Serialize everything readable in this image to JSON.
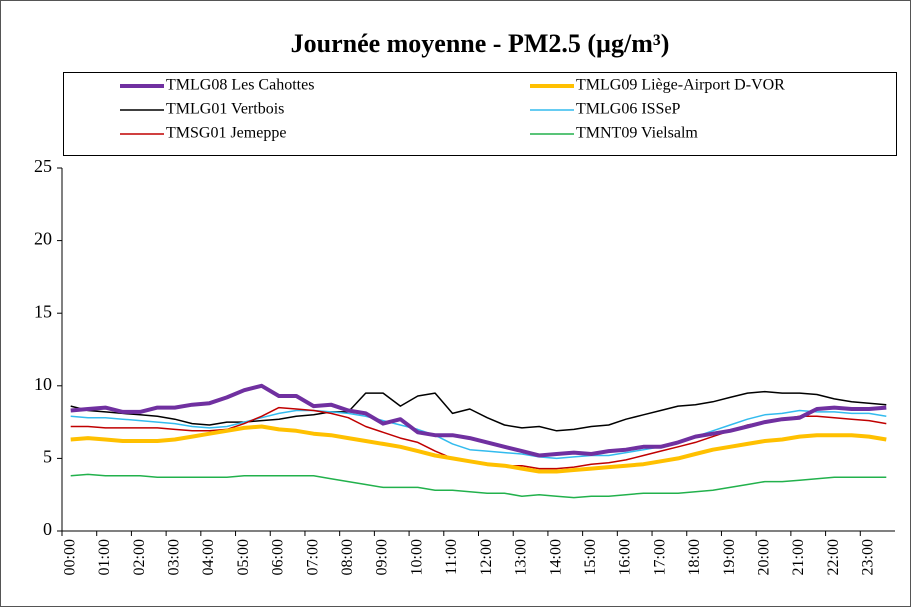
{
  "chart_data": {
    "type": "line",
    "title": "Journée moyenne - PM2.5 (µg/m³)",
    "categories": [
      "00:00",
      null,
      "01:00",
      null,
      "02:00",
      null,
      "03:00",
      null,
      "04:00",
      null,
      "05:00",
      null,
      "06:00",
      null,
      "07:00",
      null,
      "08:00",
      null,
      "09:00",
      null,
      "10:00",
      null,
      "11:00",
      null,
      "12:00",
      null,
      "13:00",
      null,
      "14:00",
      null,
      "15:00",
      null,
      "16:00",
      null,
      "17:00",
      null,
      "18:00",
      null,
      "19:00",
      null,
      "20:00",
      null,
      "21:00",
      null,
      "22:00",
      null,
      "23:00",
      null
    ],
    "series": [
      {
        "name": "TMLG08 Les Cahottes",
        "color": "#7030a0",
        "linewidth": 4,
        "values": [
          8.3,
          8.4,
          8.5,
          8.2,
          8.2,
          8.5,
          8.5,
          8.7,
          8.8,
          9.2,
          9.7,
          10.0,
          9.3,
          9.3,
          8.6,
          8.7,
          8.3,
          8.1,
          7.4,
          7.7,
          6.8,
          6.6,
          6.6,
          6.4,
          6.1,
          5.8,
          5.5,
          5.2,
          5.3,
          5.4,
          5.3,
          5.5,
          5.6,
          5.8,
          5.8,
          6.1,
          6.5,
          6.7,
          6.9,
          7.2,
          7.5,
          7.7,
          7.8,
          8.4,
          8.5,
          8.4,
          8.4,
          8.5
        ]
      },
      {
        "name": "TMLG09 Liège-Airport D-VOR",
        "color": "#ffc000",
        "linewidth": 4,
        "values": [
          6.3,
          6.4,
          6.3,
          6.2,
          6.2,
          6.2,
          6.3,
          6.5,
          6.7,
          6.9,
          7.1,
          7.2,
          7.0,
          6.9,
          6.7,
          6.6,
          6.4,
          6.2,
          6.0,
          5.8,
          5.5,
          5.2,
          5.0,
          4.8,
          4.6,
          4.5,
          4.3,
          4.1,
          4.1,
          4.2,
          4.3,
          4.4,
          4.5,
          4.6,
          4.8,
          5.0,
          5.3,
          5.6,
          5.8,
          6.0,
          6.2,
          6.3,
          6.5,
          6.6,
          6.6,
          6.6,
          6.5,
          6.3
        ]
      },
      {
        "name": "TMLG01 Vertbois",
        "color": "#000000",
        "linewidth": 1.5,
        "values": [
          8.6,
          8.3,
          8.2,
          8.1,
          8.0,
          7.9,
          7.7,
          7.4,
          7.3,
          7.5,
          7.5,
          7.6,
          7.7,
          7.9,
          8.0,
          8.2,
          8.2,
          9.5,
          9.5,
          8.6,
          9.3,
          9.5,
          8.1,
          8.4,
          7.8,
          7.3,
          7.1,
          7.2,
          6.9,
          7.0,
          7.2,
          7.3,
          7.7,
          8.0,
          8.3,
          8.6,
          8.7,
          8.9,
          9.2,
          9.5,
          9.6,
          9.5,
          9.5,
          9.4,
          9.1,
          8.9,
          8.8,
          8.7
        ]
      },
      {
        "name": "TMLG06 ISSeP",
        "color": "#33bbee",
        "linewidth": 1.5,
        "values": [
          7.9,
          7.8,
          7.8,
          7.7,
          7.6,
          7.5,
          7.4,
          7.2,
          7.1,
          7.2,
          7.5,
          7.8,
          8.1,
          8.3,
          8.3,
          8.2,
          8.1,
          7.9,
          7.6,
          7.3,
          7.0,
          6.6,
          6.0,
          5.6,
          5.5,
          5.4,
          5.3,
          5.1,
          5.0,
          5.1,
          5.2,
          5.2,
          5.4,
          5.6,
          5.8,
          6.1,
          6.5,
          6.9,
          7.3,
          7.7,
          8.0,
          8.1,
          8.3,
          8.2,
          8.2,
          8.1,
          8.1,
          7.9
        ]
      },
      {
        "name": "TMSG01 Jemeppe",
        "color": "#c00000",
        "linewidth": 1.5,
        "values": [
          7.2,
          7.2,
          7.1,
          7.1,
          7.1,
          7.1,
          7.0,
          6.9,
          6.9,
          7.0,
          7.4,
          7.9,
          8.5,
          8.4,
          8.3,
          8.1,
          7.8,
          7.2,
          6.8,
          6.4,
          6.1,
          5.5,
          5.0,
          4.8,
          4.6,
          4.5,
          4.5,
          4.3,
          4.3,
          4.4,
          4.6,
          4.7,
          4.9,
          5.2,
          5.5,
          5.8,
          6.1,
          6.5,
          6.9,
          7.3,
          7.5,
          7.7,
          7.9,
          7.9,
          7.8,
          7.7,
          7.6,
          7.4
        ]
      },
      {
        "name": "TMNT09 Vielsalm",
        "color": "#22b14c",
        "linewidth": 1.5,
        "values": [
          3.8,
          3.9,
          3.8,
          3.8,
          3.8,
          3.7,
          3.7,
          3.7,
          3.7,
          3.7,
          3.8,
          3.8,
          3.8,
          3.8,
          3.8,
          3.6,
          3.4,
          3.2,
          3.0,
          3.0,
          3.0,
          2.8,
          2.8,
          2.7,
          2.6,
          2.6,
          2.4,
          2.5,
          2.4,
          2.3,
          2.4,
          2.4,
          2.5,
          2.6,
          2.6,
          2.6,
          2.7,
          2.8,
          3.0,
          3.2,
          3.4,
          3.4,
          3.5,
          3.6,
          3.7,
          3.7,
          3.7,
          3.7
        ]
      }
    ],
    "ylim": [
      0,
      25
    ],
    "yticks": [
      0,
      5,
      10,
      15,
      20,
      25
    ],
    "grid": false,
    "legend": "top"
  }
}
